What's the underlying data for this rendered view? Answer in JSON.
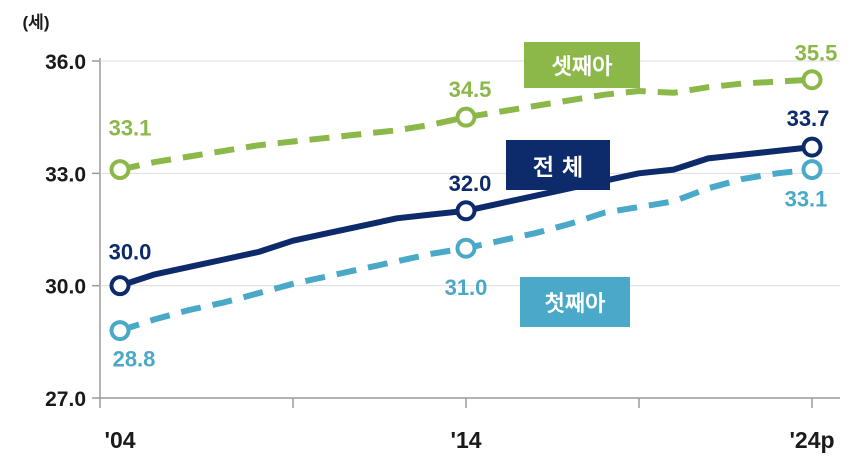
{
  "chart_data": {
    "type": "line",
    "unit_label": "(세)",
    "y_tick_labels": [
      "36.0",
      "33.0",
      "30.0",
      "27.0"
    ],
    "ylim": [
      27.0,
      36.0
    ],
    "x_tick_labels": [
      "'04",
      "'14",
      "'24p"
    ],
    "x": [
      2004,
      2005,
      2006,
      2007,
      2008,
      2009,
      2010,
      2011,
      2012,
      2013,
      2014,
      2015,
      2016,
      2017,
      2018,
      2019,
      2020,
      2021,
      2022,
      2023,
      2024
    ],
    "series": [
      {
        "name": "셋째아",
        "color": "#8cb84a",
        "dashed": true,
        "values": [
          33.1,
          33.3,
          33.45,
          33.6,
          33.75,
          33.85,
          33.95,
          34.05,
          34.15,
          34.3,
          34.5,
          34.65,
          34.8,
          34.95,
          35.1,
          35.2,
          35.15,
          35.3,
          35.4,
          35.45,
          35.5
        ]
      },
      {
        "name": "전 체",
        "color": "#0d2a6b",
        "dashed": false,
        "values": [
          30.0,
          30.3,
          30.5,
          30.7,
          30.9,
          31.2,
          31.4,
          31.6,
          31.8,
          31.9,
          32.0,
          32.2,
          32.4,
          32.6,
          32.8,
          33.0,
          33.1,
          33.4,
          33.5,
          33.6,
          33.7
        ]
      },
      {
        "name": "첫째아",
        "color": "#4aa8c8",
        "dashed": true,
        "values": [
          28.8,
          29.1,
          29.35,
          29.55,
          29.8,
          30.05,
          30.25,
          30.45,
          30.65,
          30.85,
          31.0,
          31.2,
          31.4,
          31.65,
          31.95,
          32.1,
          32.25,
          32.6,
          32.85,
          33.0,
          33.1
        ]
      }
    ],
    "data_labels": [
      {
        "series": "셋째아",
        "x": 2004,
        "text": "33.1"
      },
      {
        "series": "셋째아",
        "x": 2014,
        "text": "34.5"
      },
      {
        "series": "셋째아",
        "x": 2024,
        "text": "35.5"
      },
      {
        "series": "전 체",
        "x": 2004,
        "text": "30.0"
      },
      {
        "series": "전 체",
        "x": 2014,
        "text": "32.0"
      },
      {
        "series": "전 체",
        "x": 2024,
        "text": "33.7"
      },
      {
        "series": "첫째아",
        "x": 2004,
        "text": "28.8"
      },
      {
        "series": "첫째아",
        "x": 2014,
        "text": "31.0"
      },
      {
        "series": "첫째아",
        "x": 2024,
        "text": "33.1"
      }
    ]
  }
}
